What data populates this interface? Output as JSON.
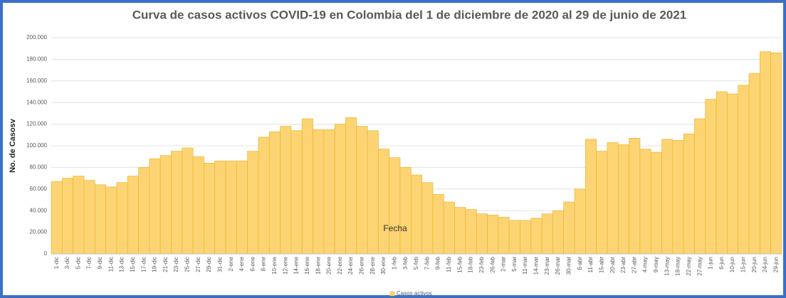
{
  "chart_data": {
    "type": "bar",
    "title": "Curva de casos activos COVID-19 en Colombia del 1 de diciembre de 2020 al 29 de junio de 2021",
    "x_label": "Fecha",
    "y_label": "No. de Casosv",
    "categories": [
      "1-dic",
      "3-dic",
      "5-dic",
      "7-dic",
      "9-dic",
      "11-dic",
      "13-dic",
      "15-dic",
      "17-dic",
      "19-dic",
      "21-dic",
      "23-dic",
      "25-dic",
      "27-dic",
      "29-dic",
      "31-dic",
      "2-ene",
      "4-ene",
      "6-ene",
      "8-ene",
      "10-ene",
      "12-ene",
      "14-ene",
      "16-ene",
      "18-ene",
      "20-ene",
      "22-ene",
      "24-ene",
      "26-ene",
      "28-ene",
      "30-ene",
      "1-feb",
      "3-feb",
      "5-feb",
      "7-feb",
      "9-feb",
      "11-feb",
      "15-feb",
      "18-feb",
      "23-feb",
      "26-feb",
      "2-mar",
      "5-mar",
      "11-mar",
      "14-mar",
      "23-mar",
      "26-mar",
      "30-mar",
      "6-abr",
      "11-abr",
      "15-abr",
      "20-abr",
      "23-abr",
      "27-abr",
      "4-may",
      "9-may",
      "13-may",
      "18-may",
      "22-may",
      "27-may",
      "1-jun",
      "6-jun",
      "10-jun",
      "15-jun",
      "20-jun",
      "24-jun",
      "29-jun"
    ],
    "series": [
      {
        "name": "Casos activos",
        "color": "#fcd473",
        "values": [
          67000,
          70000,
          72000,
          68000,
          64000,
          62000,
          66000,
          72000,
          80000,
          88000,
          91000,
          95000,
          98000,
          90000,
          84000,
          86000,
          86000,
          86000,
          95000,
          108000,
          113000,
          118000,
          114000,
          125000,
          115000,
          115000,
          120000,
          126000,
          118000,
          114000,
          97000,
          89000,
          80000,
          73000,
          66000,
          55000,
          48000,
          43000,
          41000,
          37000,
          36000,
          34000,
          31000,
          31000,
          33000,
          37000,
          40000,
          48000,
          60000,
          106000,
          95000,
          103000,
          101000,
          107000,
          97000,
          94000,
          106000,
          105000,
          111000,
          125000,
          143000,
          150000,
          148000,
          156000,
          167000,
          187000,
          186000
        ]
      }
    ],
    "ylim": [
      0,
      200000
    ],
    "yticks": [
      {
        "value": 0,
        "label": "0"
      },
      {
        "value": 20000,
        "label": "20.000"
      },
      {
        "value": 40000,
        "label": "40.000"
      },
      {
        "value": 60000,
        "label": "60.000"
      },
      {
        "value": 80000,
        "label": "80.000"
      },
      {
        "value": 100000,
        "label": "100.000"
      },
      {
        "value": 120000,
        "label": "120.000"
      },
      {
        "value": 140000,
        "label": "140.000"
      },
      {
        "value": 160000,
        "label": "160.000"
      },
      {
        "value": 180000,
        "label": "180.000"
      },
      {
        "value": 200000,
        "label": "200.000"
      }
    ],
    "grid": true
  }
}
